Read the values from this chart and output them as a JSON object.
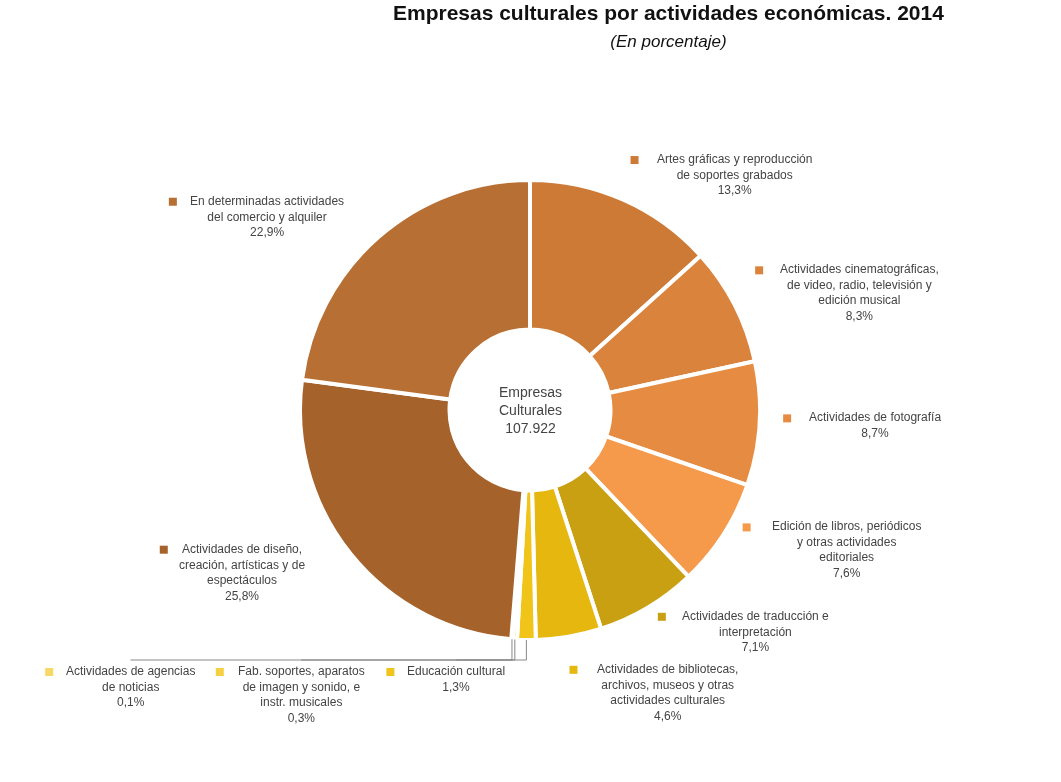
{
  "chart_data": {
    "type": "donut",
    "title": "Empresas culturales por actividades económicas. 2014",
    "subtitle": "(En porcentaje)",
    "categories": [
      "Artes gráficas y reproducción de soportes grabados",
      "Actividades cinematográficas, de video, radio, televisión y edición musical",
      "Actividades de fotografía",
      "Edición de libros, periódicos y otras actividades editoriales",
      "Actividades de traducción e interpretación",
      "Actividades de bibliotecas, archivos, museos y otras actividades culturales",
      "Educación cultural",
      "Fab. soportes, aparatos de imagen y sonido, e instr. musicales",
      "Actividades de agencias de noticias",
      "Actividades de diseño, creación, artísticas y de espectáculos",
      "En determinadas actividades del comercio y alquiler"
    ],
    "values": [
      13.3,
      8.3,
      8.7,
      7.6,
      7.1,
      4.6,
      1.3,
      0.3,
      0.1,
      25.8,
      22.9
    ],
    "value_labels": [
      "13,3%",
      "8,3%",
      "8,7%",
      "7,6%",
      "7,1%",
      "4,6%",
      "1,3%",
      "0,3%",
      "0,1%",
      "25,8%",
      "22,9%"
    ],
    "colors": [
      "#cd7a37",
      "#d9833d",
      "#e68c42",
      "#f5994a",
      "#c9a012",
      "#e6b80f",
      "#f0c419",
      "#f5d040",
      "#f5d865",
      "#a5622b",
      "#b86f34"
    ],
    "annotations": [
      "Empresas Culturales 107.922"
    ],
    "legend": "bottom left"
  }
}
